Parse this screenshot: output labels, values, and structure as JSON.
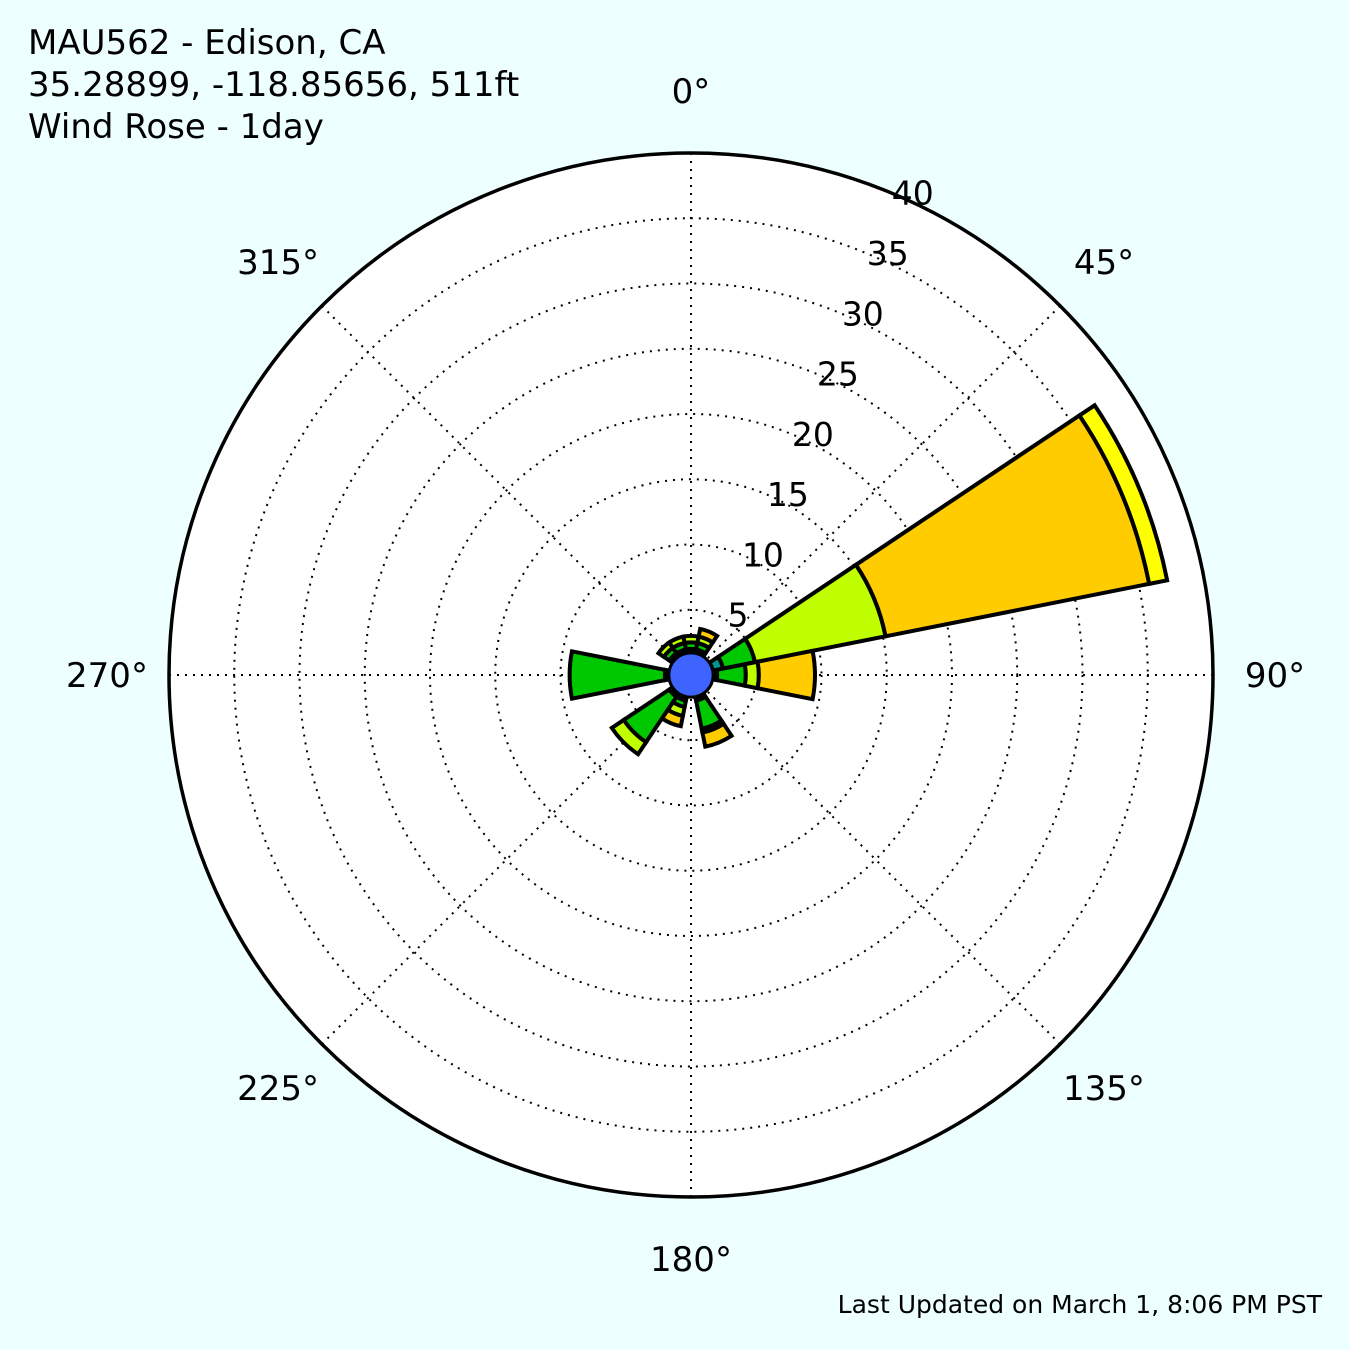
{
  "header": {
    "station": "MAU562 - Edison, CA",
    "location": "35.28899, -118.85656, 511ft",
    "chart_title": "Wind Rose - 1day"
  },
  "footer": {
    "updated": "Last Updated on March 1, 8:06 PM PST"
  },
  "colors": {
    "background": "#eeffff",
    "plot_background": "#ffffff",
    "bin_colors": [
      "#3d64ff",
      "#00998f",
      "#00c800",
      "#bfff00",
      "#ffcc00",
      "#ffff00"
    ]
  },
  "chart_data": {
    "type": "wind_rose",
    "radial_max": 40,
    "radial_ticks": [
      5,
      10,
      15,
      20,
      25,
      30,
      35,
      40
    ],
    "radial_tick_labels": [
      "5",
      "10",
      "15",
      "20",
      "25",
      "30",
      "35",
      "40"
    ],
    "angle_ticks": [
      0,
      45,
      90,
      135,
      180,
      225,
      270,
      315
    ],
    "angle_tick_labels": [
      "0°",
      "45°",
      "90°",
      "135°",
      "180°",
      "225°",
      "270°",
      "315°"
    ],
    "grid": true,
    "calm_radius": 1.7,
    "sector_width_deg": 22.5,
    "sectors": [
      {
        "direction": 0,
        "bins": [
          1.7,
          2.0,
          2.5,
          3.0
        ]
      },
      {
        "direction": 22.5,
        "bins": [
          1.7,
          2.0,
          2.5,
          3.0,
          3.6
        ]
      },
      {
        "direction": 67.5,
        "bins": [
          1.7,
          2.5,
          5.0,
          15.2,
          35.8,
          37.2
        ]
      },
      {
        "direction": 90,
        "bins": [
          1.7,
          2.0,
          4.2,
          5.2,
          9.5
        ]
      },
      {
        "direction": 157.5,
        "bins": [
          1.7,
          2.0,
          4.2,
          4.5,
          5.6
        ]
      },
      {
        "direction": 202.5,
        "bins": [
          1.7,
          2.0,
          2.5,
          3.2,
          4.0
        ]
      },
      {
        "direction": 225,
        "bins": [
          1.7,
          2.0,
          6.2,
          7.3
        ]
      },
      {
        "direction": 270,
        "bins": [
          1.7,
          2.0,
          9.3
        ]
      },
      {
        "direction": 315,
        "bins": [
          1.7,
          2.0,
          2.5,
          3.0
        ]
      },
      {
        "direction": 337.5,
        "bins": [
          1.7,
          2.0,
          2.5,
          3.0
        ]
      }
    ]
  }
}
